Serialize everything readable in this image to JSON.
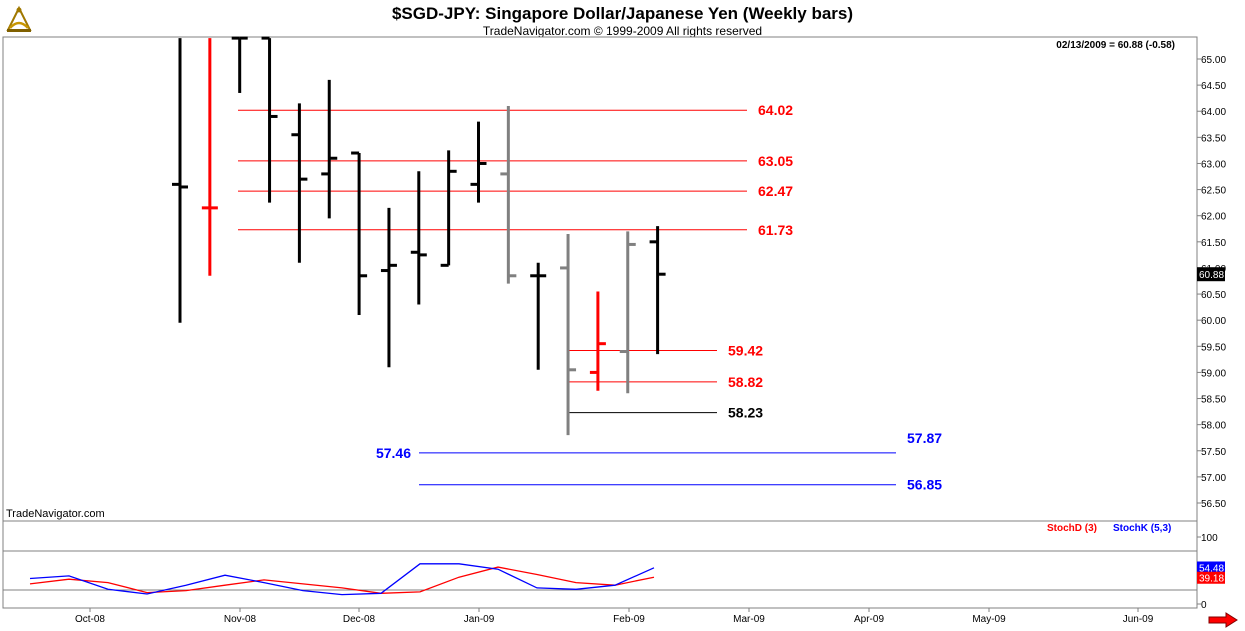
{
  "header": {
    "title": "$SGD-JPY:  Singapore Dollar/Japanese Yen  (Weekly bars)",
    "subtitle": "TradeNavigator.com © 1999-2009 All rights reserved",
    "last_price_readout": "02/13/2009 = 60.88 (-0.58)",
    "watermark": "TradeNavigator.com"
  },
  "colors": {
    "up_bar": "#000000",
    "down_bar": "#ff0000",
    "neutral_bar": "#808080",
    "level_red": "#ff0000",
    "level_black": "#000000",
    "level_blue": "#0000ff",
    "stoch_d": "#ff0000",
    "stoch_k": "#0000ff"
  },
  "icons": {
    "logo": "sextant-logo-icon",
    "scroll": "right-arrow-icon"
  },
  "chart_data": [
    {
      "type": "ohlc",
      "ylim": [
        56.3,
        65.35
      ],
      "ticks": [
        "65.00",
        "64.50",
        "64.00",
        "63.50",
        "63.00",
        "62.50",
        "62.00",
        "61.50",
        "61.00",
        "60.50",
        "60.00",
        "59.50",
        "59.00",
        "58.50",
        "58.00",
        "57.50",
        "57.00",
        "56.50"
      ],
      "x_ticks": [
        "Oct-08",
        "Nov-08",
        "Dec-08",
        "Jan-09",
        "Feb-09",
        "Mar-09",
        "Apr-09",
        "May-09",
        "Jun-09"
      ],
      "price_marker": "60.88",
      "bars": [
        {
          "o": 62.6,
          "h": 65.4,
          "l": 59.95,
          "c": 62.55,
          "color": "black"
        },
        {
          "o": 62.15,
          "h": 65.4,
          "l": 60.85,
          "c": 62.15,
          "color": "red"
        },
        {
          "o": 65.4,
          "h": 65.4,
          "l": 64.35,
          "c": 65.4,
          "color": "black"
        },
        {
          "o": 65.4,
          "h": 65.4,
          "l": 62.25,
          "c": 63.9,
          "color": "black"
        },
        {
          "o": 63.55,
          "h": 64.15,
          "l": 61.1,
          "c": 62.7,
          "color": "black"
        },
        {
          "o": 62.8,
          "h": 64.6,
          "l": 61.95,
          "c": 63.1,
          "color": "black"
        },
        {
          "o": 63.2,
          "h": 63.2,
          "l": 60.1,
          "c": 60.85,
          "color": "black"
        },
        {
          "o": 60.95,
          "h": 62.15,
          "l": 59.1,
          "c": 61.05,
          "color": "black"
        },
        {
          "o": 61.3,
          "h": 62.85,
          "l": 60.3,
          "c": 61.25,
          "color": "black"
        },
        {
          "o": 61.05,
          "h": 63.25,
          "l": 61.05,
          "c": 62.85,
          "color": "black"
        },
        {
          "o": 62.6,
          "h": 63.8,
          "l": 62.25,
          "c": 63.0,
          "color": "black"
        },
        {
          "o": 62.8,
          "h": 64.1,
          "l": 60.7,
          "c": 60.85,
          "color": "gray"
        },
        {
          "o": 60.85,
          "h": 61.1,
          "l": 59.05,
          "c": 60.85,
          "color": "black"
        },
        {
          "o": 61.0,
          "h": 61.65,
          "l": 57.8,
          "c": 59.05,
          "color": "gray"
        },
        {
          "o": 59.0,
          "h": 60.55,
          "l": 58.65,
          "c": 59.55,
          "color": "red"
        },
        {
          "o": 59.4,
          "h": 61.7,
          "l": 58.6,
          "c": 61.45,
          "color": "gray"
        },
        {
          "o": 61.5,
          "h": 61.8,
          "l": 59.35,
          "c": 60.88,
          "color": "black"
        }
      ],
      "levels": [
        {
          "value": 64.02,
          "label": "64.02",
          "color": "red"
        },
        {
          "value": 63.05,
          "label": "63.05",
          "color": "red"
        },
        {
          "value": 62.47,
          "label": "62.47",
          "color": "red"
        },
        {
          "value": 61.73,
          "label": "61.73",
          "color": "red"
        },
        {
          "value": 59.42,
          "label": "59.42",
          "color": "red"
        },
        {
          "value": 58.82,
          "label": "58.82",
          "color": "red"
        },
        {
          "value": 58.23,
          "label": "58.23",
          "color": "black"
        },
        {
          "value": 57.46,
          "label": "57.46",
          "color": "blue",
          "second_label": "57.87"
        },
        {
          "value": 56.85,
          "label": "56.85",
          "color": "blue"
        }
      ]
    },
    {
      "type": "line",
      "ylim": [
        0,
        100
      ],
      "y_ticks": [
        "100",
        "50",
        "0"
      ],
      "legend": [
        {
          "name": "StochD (3)",
          "color": "red"
        },
        {
          "name": "StochK (5,3)",
          "color": "blue"
        }
      ],
      "series": [
        {
          "name": "StochD (3)",
          "values": [
            30,
            37,
            32,
            17,
            20,
            28,
            36,
            30,
            24,
            16,
            18,
            40,
            55,
            44,
            32,
            28,
            40
          ]
        },
        {
          "name": "StochK (5,3)",
          "values": [
            38,
            42,
            22,
            15,
            28,
            43,
            32,
            20,
            14,
            16,
            60,
            60,
            52,
            24,
            22,
            28,
            54
          ]
        }
      ],
      "last_values": {
        "stoch_k": "54.48",
        "stoch_d": "39.18"
      }
    }
  ]
}
